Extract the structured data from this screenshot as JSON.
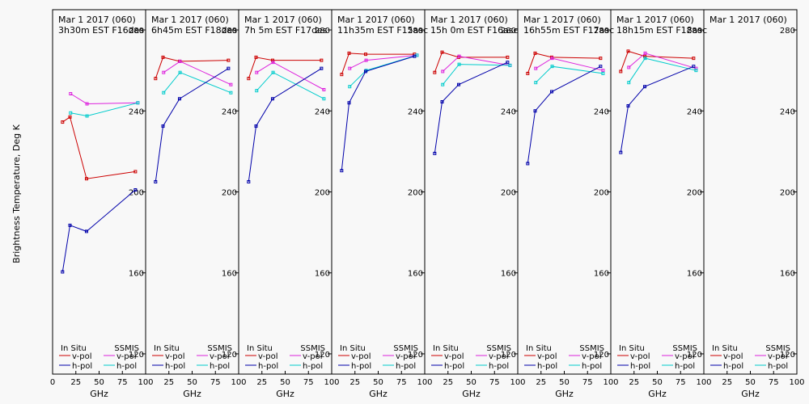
{
  "chart_data": {
    "type": "line",
    "ylabel": "Brightness Temperature, Deg K",
    "xlabel": "GHz",
    "xlim": [
      0,
      100
    ],
    "ylim": [
      110,
      290
    ],
    "x_ticks": [
      0,
      25,
      50,
      75,
      100
    ],
    "x_tick_labels_first": [
      "0",
      "25",
      "50",
      "75",
      "100"
    ],
    "x_tick_labels_other": [
      "25",
      "50",
      "75",
      "100"
    ],
    "y_ticks": [
      120,
      160,
      200,
      240,
      280
    ],
    "y_tick_labels": [
      "120",
      "160",
      "200",
      "240",
      "280"
    ],
    "legend": {
      "in_situ_label": "In Situ",
      "ssmis_label": "SSMIS",
      "vpol_label": "v-pol",
      "hpol_label": "h-pol"
    },
    "colors": {
      "insitu_v": "#cc0000",
      "insitu_h": "#0000aa",
      "ssmis_v": "#dd22dd",
      "ssmis_h": "#00cccc"
    },
    "panels": [
      {
        "title1": "Mar 1 2017 (060)",
        "title2": "3h30m EST F16des",
        "insitu_v": [
          [
            10.7,
            234.5
          ],
          [
            18.7,
            237
          ],
          [
            36.5,
            206.5
          ],
          [
            89,
            210
          ]
        ],
        "insitu_h": [
          [
            10.7,
            160.5
          ],
          [
            18.7,
            183.5
          ],
          [
            36.5,
            180.5
          ],
          [
            89,
            201
          ]
        ],
        "ssmis_v": [
          [
            19.35,
            248.5
          ],
          [
            37,
            243.5
          ],
          [
            91.65,
            244
          ]
        ],
        "ssmis_h": [
          [
            19.35,
            239
          ],
          [
            37,
            237.5
          ],
          [
            91.65,
            244
          ]
        ]
      },
      {
        "title1": "Mar 1 2017 (060)",
        "title2": "6h45m EST F18des",
        "insitu_v": [
          [
            10.7,
            256
          ],
          [
            18.7,
            266.5
          ],
          [
            36.5,
            264.5
          ],
          [
            89,
            265
          ]
        ],
        "insitu_h": [
          [
            10.7,
            205
          ],
          [
            18.7,
            232.5
          ],
          [
            36.5,
            246
          ],
          [
            89,
            261
          ]
        ],
        "ssmis_v": [
          [
            19.35,
            259
          ],
          [
            37,
            264.5
          ],
          [
            91.65,
            253
          ]
        ],
        "ssmis_h": [
          [
            19.35,
            249
          ],
          [
            37,
            259
          ],
          [
            91.65,
            249
          ]
        ]
      },
      {
        "title1": "Mar 1 2017 (060)",
        "title2": "7h 5m EST F17des",
        "insitu_v": [
          [
            10.7,
            256
          ],
          [
            18.7,
            266.5
          ],
          [
            36.5,
            265
          ],
          [
            89,
            265
          ]
        ],
        "insitu_h": [
          [
            10.7,
            205
          ],
          [
            18.7,
            232.5
          ],
          [
            36.5,
            246
          ],
          [
            89,
            261
          ]
        ],
        "ssmis_v": [
          [
            19.35,
            259
          ],
          [
            37,
            264
          ],
          [
            91.65,
            250.5
          ]
        ],
        "ssmis_h": [
          [
            19.35,
            250
          ],
          [
            37,
            259
          ],
          [
            91.65,
            246
          ]
        ]
      },
      {
        "title1": "Mar 1 2017 (060)",
        "title2": "11h35m EST F15asc",
        "insitu_v": [
          [
            10.7,
            258
          ],
          [
            18.7,
            268.5
          ],
          [
            36.5,
            268
          ],
          [
            89,
            268
          ]
        ],
        "insitu_h": [
          [
            10.7,
            210.5
          ],
          [
            18.7,
            244
          ],
          [
            36.5,
            259.5
          ],
          [
            89,
            267
          ]
        ],
        "ssmis_v": [
          [
            19.35,
            261
          ],
          [
            37,
            265
          ],
          [
            91.65,
            267.5
          ]
        ],
        "ssmis_h": [
          [
            19.35,
            252
          ],
          [
            37,
            260
          ],
          [
            91.65,
            267.5
          ]
        ]
      },
      {
        "title1": "Mar 1 2017 (060)",
        "title2": "15h 0m EST F16asc",
        "insitu_v": [
          [
            10.7,
            259
          ],
          [
            18.7,
            269
          ],
          [
            36.5,
            266.5
          ],
          [
            89,
            266.5
          ]
        ],
        "insitu_h": [
          [
            10.7,
            219
          ],
          [
            18.7,
            244.5
          ],
          [
            36.5,
            253
          ],
          [
            89,
            264
          ]
        ],
        "ssmis_v": [
          [
            19.35,
            259.5
          ],
          [
            37,
            267
          ],
          [
            91.65,
            262.5
          ]
        ],
        "ssmis_h": [
          [
            19.35,
            253
          ],
          [
            37,
            263
          ],
          [
            91.65,
            262.5
          ]
        ]
      },
      {
        "title1": "Mar 1 2017 (060)",
        "title2": "16h55m EST F17asc",
        "insitu_v": [
          [
            10.7,
            258.5
          ],
          [
            18.7,
            268.5
          ],
          [
            36.5,
            266.5
          ],
          [
            89,
            266
          ]
        ],
        "insitu_h": [
          [
            10.7,
            214
          ],
          [
            18.7,
            240
          ],
          [
            36.5,
            249.5
          ],
          [
            89,
            262
          ]
        ],
        "ssmis_v": [
          [
            19.35,
            261
          ],
          [
            37,
            266
          ],
          [
            91.65,
            260
          ]
        ],
        "ssmis_h": [
          [
            19.35,
            254
          ],
          [
            37,
            262
          ],
          [
            91.65,
            258.5
          ]
        ]
      },
      {
        "title1": "Mar 1 2017 (060)",
        "title2": "18h15m EST F18asc",
        "insitu_v": [
          [
            10.7,
            259.5
          ],
          [
            18.7,
            269.5
          ],
          [
            36.5,
            267
          ],
          [
            89,
            266
          ]
        ],
        "insitu_h": [
          [
            10.7,
            219.5
          ],
          [
            18.7,
            242.5
          ],
          [
            36.5,
            252
          ],
          [
            89,
            262
          ]
        ],
        "ssmis_v": [
          [
            19.35,
            261.5
          ],
          [
            37,
            268.5
          ],
          [
            91.65,
            261
          ]
        ],
        "ssmis_h": [
          [
            19.35,
            254
          ],
          [
            37,
            266
          ],
          [
            91.65,
            260
          ]
        ]
      },
      {
        "title1": "Mar 1 2017 (060)",
        "title2": "",
        "insitu_v": [],
        "insitu_h": [],
        "ssmis_v": [],
        "ssmis_h": []
      }
    ]
  }
}
